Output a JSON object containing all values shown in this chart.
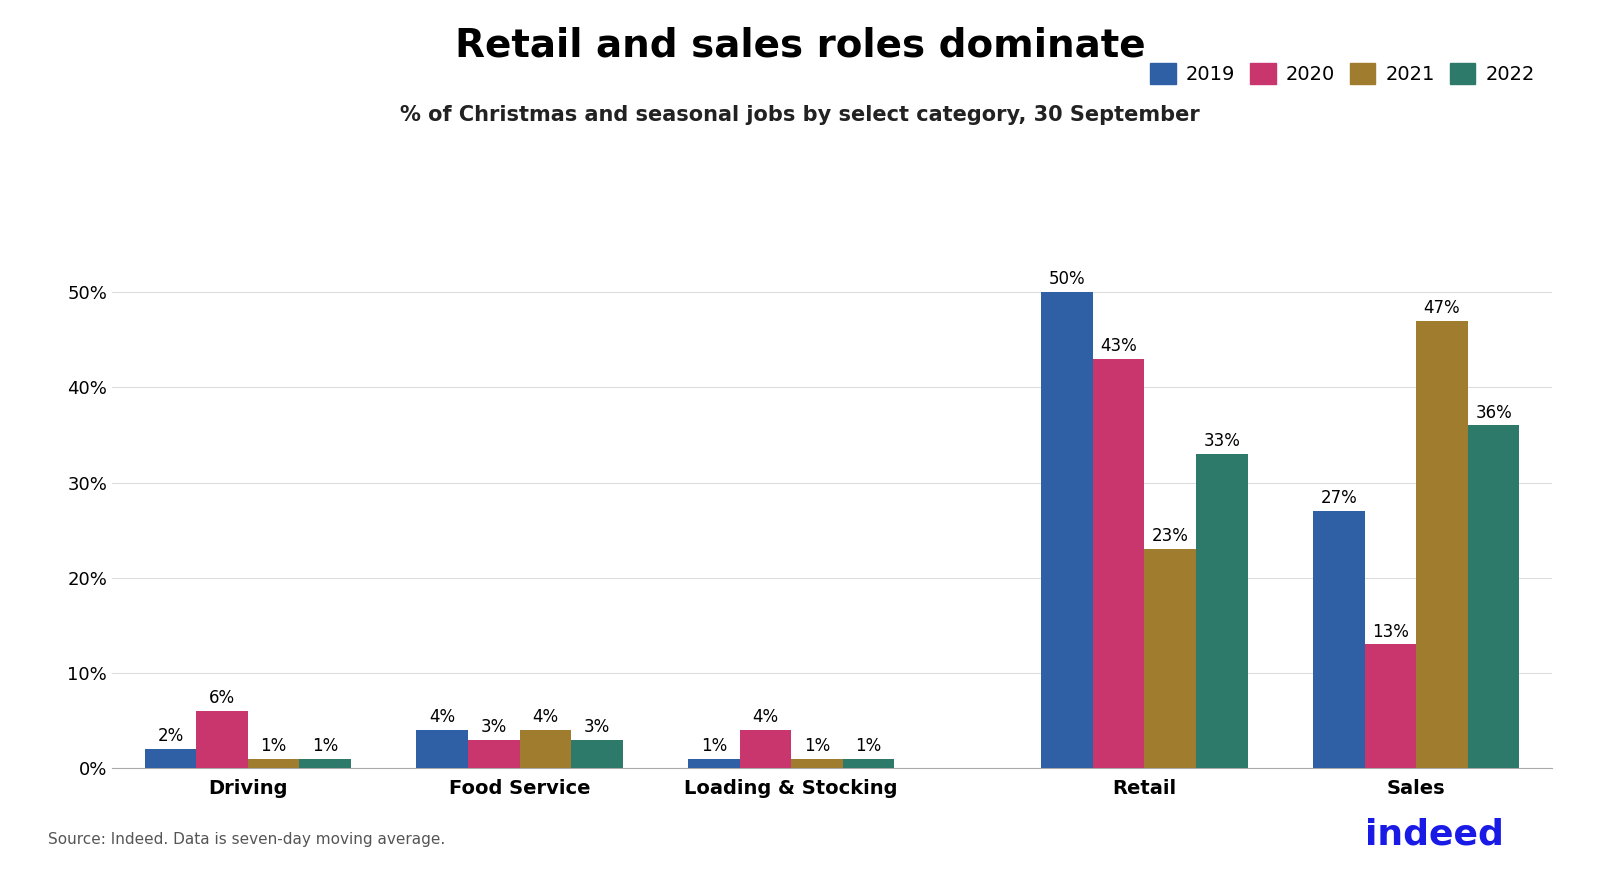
{
  "title": "Retail and sales roles dominate",
  "subtitle": "% of Christmas and seasonal jobs by select category, 30 September",
  "source": "Source: Indeed. Data is seven-day moving average.",
  "categories": [
    "Driving",
    "Food Service",
    "Loading & Stocking",
    "Retail",
    "Sales"
  ],
  "years": [
    "2019",
    "2020",
    "2021",
    "2022"
  ],
  "colors": {
    "2019": "#2f5fa5",
    "2020": "#c9366e",
    "2021": "#a07c2e",
    "2022": "#2e7a6a"
  },
  "values": {
    "Driving": [
      2,
      6,
      1,
      1
    ],
    "Food Service": [
      4,
      3,
      4,
      3
    ],
    "Loading & Stocking": [
      1,
      4,
      1,
      1
    ],
    "Retail": [
      50,
      43,
      23,
      33
    ],
    "Sales": [
      27,
      13,
      47,
      36
    ]
  },
  "ylim": [
    0,
    55
  ],
  "yticks": [
    0,
    10,
    20,
    30,
    40,
    50
  ],
  "bar_width": 0.19,
  "title_fontsize": 28,
  "subtitle_fontsize": 15,
  "tick_fontsize": 13,
  "label_fontsize": 14,
  "legend_fontsize": 14,
  "annotation_fontsize": 12,
  "indeed_color": "#1a1ae6",
  "background_color": "#ffffff"
}
